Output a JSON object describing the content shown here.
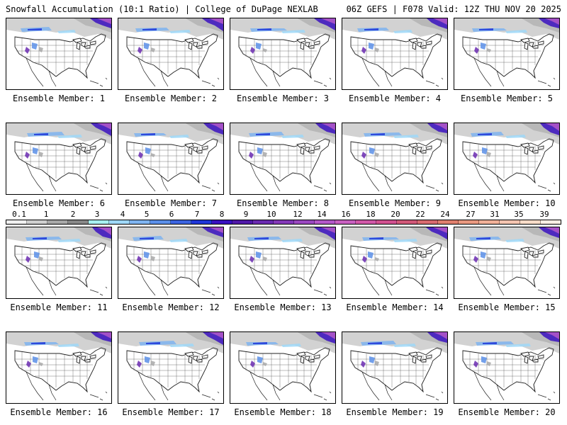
{
  "header": {
    "left": "Snowfall Accumulation (10:1 Ratio) | College of DuPage NEXLAB",
    "right": "06Z GEFS | F078 Valid: 12Z THU NOV 20 2025"
  },
  "colorbar": {
    "labels": [
      "0.1",
      "1",
      "2",
      "3",
      "4",
      "5",
      "6",
      "7",
      "8",
      "9",
      "10",
      "12",
      "14",
      "16",
      "18",
      "20",
      "22",
      "24",
      "27",
      "31",
      "35",
      "39"
    ],
    "colors": [
      "#f0f0f0",
      "#cfcfcf",
      "#a8a8a8",
      "#888888",
      "#a8f0f0",
      "#9fd8f8",
      "#7fb4f0",
      "#5b8fe8",
      "#3c64e0",
      "#1f36d8",
      "#3a10c0",
      "#5018a8",
      "#6a2ab0",
      "#8438b8",
      "#9a48c0",
      "#b458c8",
      "#c860c0",
      "#d058a8",
      "#d05090",
      "#d05878",
      "#d86a70",
      "#e0806e",
      "#e89880",
      "#f0b098",
      "#f4c4b0",
      "#f8dcc8",
      "#fbeee4"
    ]
  },
  "members": [
    {
      "label": "Ensemble Member: 1"
    },
    {
      "label": "Ensemble Member: 2"
    },
    {
      "label": "Ensemble Member: 3"
    },
    {
      "label": "Ensemble Member: 4"
    },
    {
      "label": "Ensemble Member: 5"
    },
    {
      "label": "Ensemble Member: 6"
    },
    {
      "label": "Ensemble Member: 7"
    },
    {
      "label": "Ensemble Member: 8"
    },
    {
      "label": "Ensemble Member: 9"
    },
    {
      "label": "Ensemble Member: 10"
    },
    {
      "label": "Ensemble Member: 11"
    },
    {
      "label": "Ensemble Member: 12"
    },
    {
      "label": "Ensemble Member: 13"
    },
    {
      "label": "Ensemble Member: 14"
    },
    {
      "label": "Ensemble Member: 15"
    },
    {
      "label": "Ensemble Member: 16"
    },
    {
      "label": "Ensemble Member: 17"
    },
    {
      "label": "Ensemble Member: 18"
    },
    {
      "label": "Ensemble Member: 19"
    },
    {
      "label": "Ensemble Member: 20"
    }
  ]
}
